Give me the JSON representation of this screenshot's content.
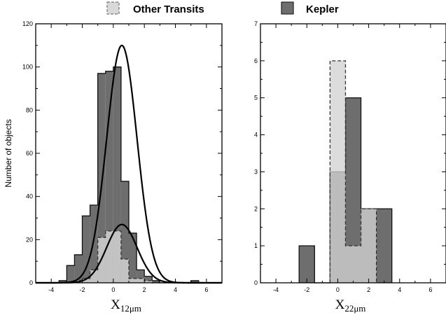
{
  "legend": [
    {
      "label": "Other Transits",
      "color": "#d9d9d9",
      "dashed": true
    },
    {
      "label": "Kepler",
      "color": "#6e6e6e",
      "dashed": false
    }
  ],
  "chart_data": [
    {
      "type": "histogram",
      "panel": "left",
      "xlabel_main": "X",
      "xlabel_sub": "12μm",
      "ylabel": "Number of objects",
      "xlim": [
        -5,
        7
      ],
      "ylim": [
        0,
        120
      ],
      "xticks": [
        -4,
        -2,
        0,
        2,
        4,
        6
      ],
      "yticks": [
        0,
        20,
        40,
        60,
        80,
        100,
        120
      ],
      "bin_width": 0.5,
      "series": [
        {
          "name": "Kepler",
          "color": "#6e6e6e",
          "fill_opacity": 1,
          "edges": [
            -3.5,
            -3.0,
            -2.5,
            -2.0,
            -1.5,
            -1.0,
            -0.5,
            0.0,
            0.5,
            1.0,
            1.5,
            2.0,
            2.5,
            3.0,
            3.5,
            4.0,
            4.5,
            5.0,
            5.5,
            6.0,
            6.5
          ],
          "values": [
            1,
            8,
            13,
            31,
            36,
            97,
            98,
            100,
            47,
            23,
            6,
            3,
            1,
            0,
            0,
            0,
            0,
            1,
            0,
            0
          ]
        },
        {
          "name": "Other Transits",
          "color": "#d2d2d2",
          "fill_opacity": 0.85,
          "dashed": true,
          "edges": [
            -3.5,
            -3.0,
            -2.5,
            -2.0,
            -1.5,
            -1.0,
            -0.5,
            0.0,
            0.5,
            1.0,
            1.5,
            2.0,
            2.5,
            3.0,
            3.5,
            4.0
          ],
          "values": [
            0,
            0,
            1,
            2,
            6,
            21,
            24,
            24,
            11,
            2,
            2,
            1,
            0,
            0,
            0
          ]
        }
      ],
      "curves": [
        {
          "type": "gaussian",
          "amplitude": 110,
          "mean": 0.55,
          "sigma": 0.98
        },
        {
          "type": "gaussian",
          "amplitude": 27,
          "mean": 0.55,
          "sigma": 0.98
        }
      ]
    },
    {
      "type": "histogram",
      "panel": "right",
      "xlabel_main": "X",
      "xlabel_sub": "22μm",
      "ylabel": "",
      "xlim": [
        -5,
        7
      ],
      "ylim": [
        0,
        7
      ],
      "xticks": [
        -4,
        -2,
        0,
        2,
        4,
        6
      ],
      "yticks": [
        0,
        1,
        2,
        3,
        4,
        5,
        6,
        7
      ],
      "bin_width": 1,
      "series": [
        {
          "name": "Kepler",
          "color": "#6e6e6e",
          "fill_opacity": 1,
          "edges": [
            -2.5,
            -1.5,
            -0.5,
            0.5,
            1.5,
            2.5,
            3.5
          ],
          "values": [
            1,
            0,
            3,
            5,
            2,
            2
          ]
        },
        {
          "name": "Other Transits",
          "color": "#d2d2d2",
          "fill_opacity": 0.78,
          "dashed": true,
          "edges": [
            -0.5,
            0.5,
            1.5,
            2.5
          ],
          "values": [
            6,
            1,
            2
          ]
        }
      ]
    }
  ]
}
